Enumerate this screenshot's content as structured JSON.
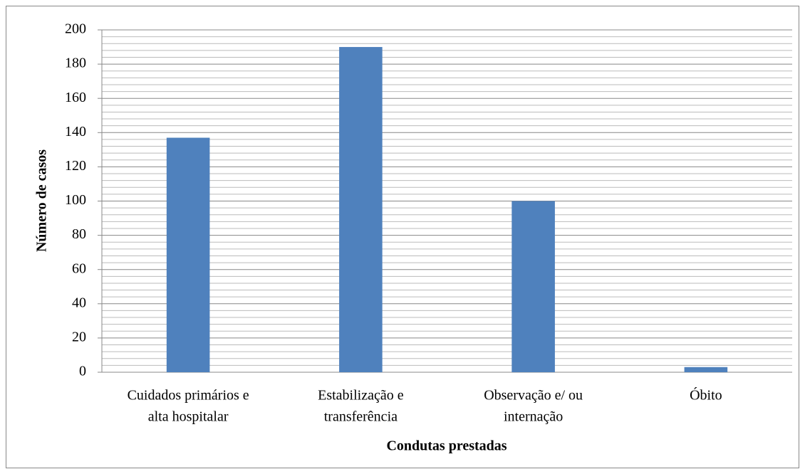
{
  "chart_data": {
    "type": "bar",
    "x_label": "Condutas prestadas",
    "y_label": "Número de casos",
    "categories": [
      [
        "Cuidados primários e",
        "alta hospitalar"
      ],
      [
        "Estabilização e",
        "transferência"
      ],
      [
        "Observação e/ ou",
        "internação"
      ],
      [
        "Óbito"
      ]
    ],
    "values": [
      137,
      190,
      100,
      3
    ],
    "color": "#4f81bd",
    "ylim": [
      0,
      200
    ],
    "yticks": [
      0,
      20,
      40,
      60,
      80,
      100,
      120,
      140,
      160,
      180,
      200
    ],
    "minor_yticks": [
      4,
      8,
      12,
      16,
      24,
      28,
      32,
      36,
      44,
      48,
      52,
      56,
      64,
      68,
      72,
      76,
      84,
      88,
      92,
      96,
      104,
      108,
      112,
      116,
      124,
      128,
      132,
      136,
      144,
      148,
      152,
      156,
      164,
      168,
      172,
      176,
      184,
      188,
      192,
      196
    ],
    "grid": true
  }
}
